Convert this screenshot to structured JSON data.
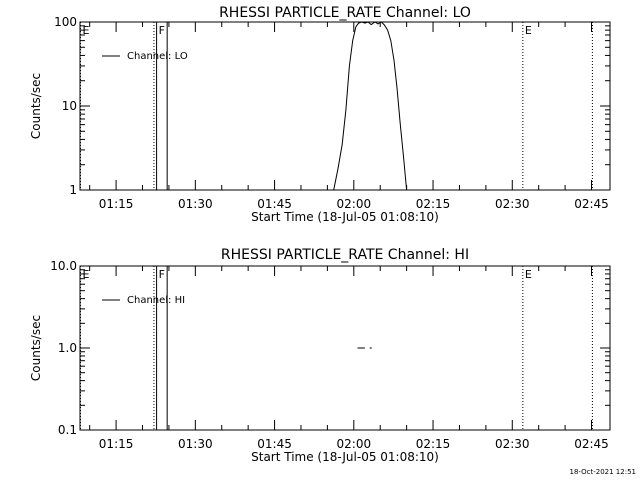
{
  "chart_data": [
    {
      "type": "line",
      "title": "RHESSI PARTICLE_RATE Channel: LO",
      "xlabel": "Start Time (18-Jul-05 01:08:10)",
      "ylabel": "Counts/sec",
      "yscale": "log",
      "ylim": [
        1,
        100
      ],
      "xlim": [
        "01:08:10",
        "02:48:30"
      ],
      "x_tick_labels": [
        "01:15",
        "01:30",
        "01:45",
        "02:00",
        "02:15",
        "02:30",
        "02:45"
      ],
      "y_tick_labels": [
        "1",
        "10",
        "100"
      ],
      "legend": {
        "placement": "top-left",
        "entries": [
          "Channel: LO"
        ]
      },
      "grid": false,
      "series": [
        {
          "name": "Channel: LO",
          "x": [
            "01:56:12",
            "01:57:00",
            "01:57:48",
            "01:58:30",
            "01:59:10",
            "01:59:48",
            "02:00:24",
            "02:00:54",
            "02:01:30",
            "02:02:06",
            "02:02:42",
            "02:03:18",
            "02:04:00",
            "02:04:36",
            "02:05:12",
            "02:05:48",
            "02:06:24",
            "02:07:00",
            "02:07:36",
            "02:08:12",
            "02:08:48",
            "02:09:24",
            "02:10:00"
          ],
          "values": [
            1.0,
            1.8,
            3.5,
            9,
            30,
            60,
            88,
            97,
            100,
            97,
            100,
            93,
            100,
            95,
            100,
            92,
            80,
            60,
            35,
            16,
            6,
            2.5,
            1.0
          ]
        }
      ],
      "markers": [
        {
          "label": "E",
          "time": "01:08:10",
          "style": "dotted"
        },
        {
          "label": "",
          "time": "01:22:10",
          "style": "dotted"
        },
        {
          "label": "F",
          "time": "01:22:40",
          "style": "solid"
        },
        {
          "label": "",
          "time": "01:24:40",
          "style": "solid"
        },
        {
          "label": "E",
          "time": "02:32:00",
          "style": "dotted"
        },
        {
          "label": "",
          "time": "02:45:10",
          "style": "dotted"
        }
      ]
    },
    {
      "type": "line",
      "title": "RHESSI PARTICLE_RATE Channel: HI",
      "xlabel": "Start Time (18-Jul-05 01:08:10)",
      "ylabel": "Counts/sec",
      "yscale": "log",
      "ylim": [
        0.1,
        10
      ],
      "xlim": [
        "01:08:10",
        "02:48:30"
      ],
      "x_tick_labels": [
        "01:15",
        "01:30",
        "01:45",
        "02:00",
        "02:15",
        "02:30",
        "02:45"
      ],
      "y_tick_labels": [
        "0.1",
        "1.0",
        "10.0"
      ],
      "legend": {
        "placement": "top-left",
        "entries": [
          "Channel: HI"
        ]
      },
      "grid": false,
      "series": [
        {
          "name": "Channel: HI",
          "segments": [
            {
              "x": [
                "02:00:42",
                "02:02:06"
              ],
              "values": [
                1.0,
                1.0
              ]
            },
            {
              "x": [
                "02:03:00",
                "02:03:24"
              ],
              "values": [
                1.0,
                1.0
              ]
            }
          ]
        }
      ],
      "markers": [
        {
          "label": "E",
          "time": "01:08:10",
          "style": "dotted"
        },
        {
          "label": "",
          "time": "01:22:10",
          "style": "dotted"
        },
        {
          "label": "F",
          "time": "01:22:40",
          "style": "solid"
        },
        {
          "label": "",
          "time": "01:24:40",
          "style": "solid"
        },
        {
          "label": "E",
          "time": "02:32:00",
          "style": "dotted"
        },
        {
          "label": "",
          "time": "02:45:10",
          "style": "dotted"
        }
      ]
    }
  ],
  "footer": {
    "timestamp": "18-Oct-2021 12:51"
  }
}
